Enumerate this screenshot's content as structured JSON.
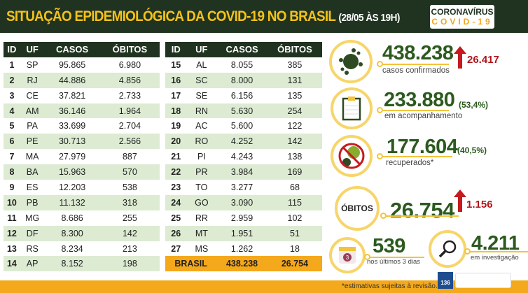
{
  "header": {
    "title": "SITUAÇÃO EPIDEMIOLÓGICA DA COVID-19 NO BRASIL",
    "subtitle": "(28/05 ÀS 19H)",
    "logo_line1": "CORONAVÍRUS",
    "logo_line2": "COVID-19"
  },
  "table": {
    "columns": [
      "ID",
      "UF",
      "CASOS",
      "ÓBITOS"
    ],
    "left": [
      [
        "1",
        "SP",
        "95.865",
        "6.980"
      ],
      [
        "2",
        "RJ",
        "44.886",
        "4.856"
      ],
      [
        "3",
        "CE",
        "37.821",
        "2.733"
      ],
      [
        "4",
        "AM",
        "36.146",
        "1.964"
      ],
      [
        "5",
        "PA",
        "33.699",
        "2.704"
      ],
      [
        "6",
        "PE",
        "30.713",
        "2.566"
      ],
      [
        "7",
        "MA",
        "27.979",
        "887"
      ],
      [
        "8",
        "BA",
        "15.963",
        "570"
      ],
      [
        "9",
        "ES",
        "12.203",
        "538"
      ],
      [
        "10",
        "PB",
        "11.132",
        "318"
      ],
      [
        "11",
        "MG",
        "8.686",
        "255"
      ],
      [
        "12",
        "DF",
        "8.300",
        "142"
      ],
      [
        "13",
        "RS",
        "8.234",
        "213"
      ],
      [
        "14",
        "AP",
        "8.152",
        "198"
      ]
    ],
    "right": [
      [
        "15",
        "AL",
        "8.055",
        "385"
      ],
      [
        "16",
        "SC",
        "8.000",
        "131"
      ],
      [
        "17",
        "SE",
        "6.156",
        "135"
      ],
      [
        "18",
        "RN",
        "5.630",
        "254"
      ],
      [
        "19",
        "AC",
        "5.600",
        "122"
      ],
      [
        "20",
        "RO",
        "4.252",
        "142"
      ],
      [
        "21",
        "PI",
        "4.243",
        "138"
      ],
      [
        "22",
        "PR",
        "3.984",
        "169"
      ],
      [
        "23",
        "TO",
        "3.277",
        "68"
      ],
      [
        "24",
        "GO",
        "3.090",
        "115"
      ],
      [
        "25",
        "RR",
        "2.959",
        "102"
      ],
      [
        "26",
        "MT",
        "1.951",
        "51"
      ],
      [
        "27",
        "MS",
        "1.262",
        "18"
      ]
    ],
    "total": {
      "label": "BRASIL",
      "casos": "438.238",
      "obitos": "26.754"
    }
  },
  "stats": {
    "confirmed": {
      "value": "438.238",
      "label": "casos confirmados",
      "increase": "26.417",
      "icon": "virus-icon"
    },
    "monitoring": {
      "value": "233.880",
      "pct": "(53,4%)",
      "label": "em acompanhamento",
      "icon": "clipboard-icon"
    },
    "recovered": {
      "value": "177.604",
      "pct": "(40,5%)",
      "label": "recuperados*",
      "icon": "no-virus-icon"
    },
    "deaths": {
      "badge": "ÓBITOS",
      "value": "26.754",
      "increase": "1.156"
    },
    "recent": {
      "value": "539",
      "label": "nos últimos 3 dias",
      "calendar": "3",
      "icon": "calendar-icon"
    },
    "investigation": {
      "value": "4.211",
      "label": "em investigação",
      "icon": "magnifier-icon"
    }
  },
  "footer": {
    "note": "*estimativas sujeitas à revisão.",
    "disque_label": "136"
  },
  "colors": {
    "dark_green": "#203320",
    "yellow": "#f4c21a",
    "orange": "#f4a81b",
    "red": "#c41a20",
    "light_green": "#dcebd2"
  }
}
